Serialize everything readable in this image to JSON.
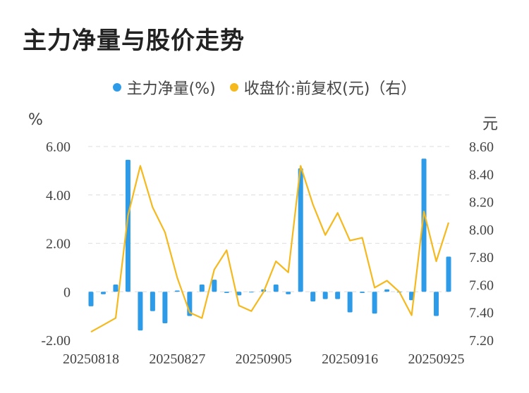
{
  "title": "主力净量与股价走势",
  "legend": {
    "net_flow": "主力净量(%)",
    "price": "收盘价:前复权(元)（右）"
  },
  "units": {
    "left": "%",
    "right": "元"
  },
  "colors": {
    "bar": "#2e9be8",
    "line": "#f5b91d",
    "grid": "#e3e3e3",
    "axis_text": "#444444"
  },
  "chart_data": {
    "type": "bar+line",
    "title": "主力净量与股价走势",
    "x_tick_labels": [
      "20250818",
      "20250827",
      "20250905",
      "20250916",
      "20250925"
    ],
    "left_axis": {
      "ticks": [
        "-2.00",
        "0",
        "2.00",
        "4.00",
        "6.00"
      ],
      "ylim": [
        -2,
        6
      ]
    },
    "right_axis": {
      "ticks": [
        "7.20",
        "7.40",
        "7.60",
        "7.80",
        "8.00",
        "8.20",
        "8.40",
        "8.60"
      ],
      "ylim": [
        7.2,
        8.6
      ]
    },
    "series": [
      {
        "name": "主力净量(%)",
        "type": "bar",
        "axis": "left",
        "values": [
          -0.6,
          -0.1,
          0.3,
          5.45,
          -1.6,
          -0.8,
          -1.3,
          0.05,
          -1.0,
          0.3,
          0.5,
          -0.05,
          -0.15,
          -0.02,
          0.1,
          0.3,
          -0.1,
          5.1,
          -0.4,
          -0.3,
          -0.3,
          -0.85,
          -0.05,
          -0.9,
          0.1,
          -0.02,
          -0.35,
          5.5,
          -1.0,
          1.45
        ]
      },
      {
        "name": "收盘价:前复权(元)（右）",
        "type": "line",
        "axis": "right",
        "values": [
          7.26,
          7.31,
          7.36,
          8.1,
          8.46,
          8.16,
          7.98,
          7.65,
          7.4,
          7.36,
          7.71,
          7.85,
          7.45,
          7.41,
          7.55,
          7.77,
          7.69,
          8.46,
          8.18,
          7.96,
          8.12,
          7.92,
          7.94,
          7.58,
          7.63,
          7.55,
          7.38,
          8.13,
          7.77,
          8.05
        ]
      }
    ]
  }
}
